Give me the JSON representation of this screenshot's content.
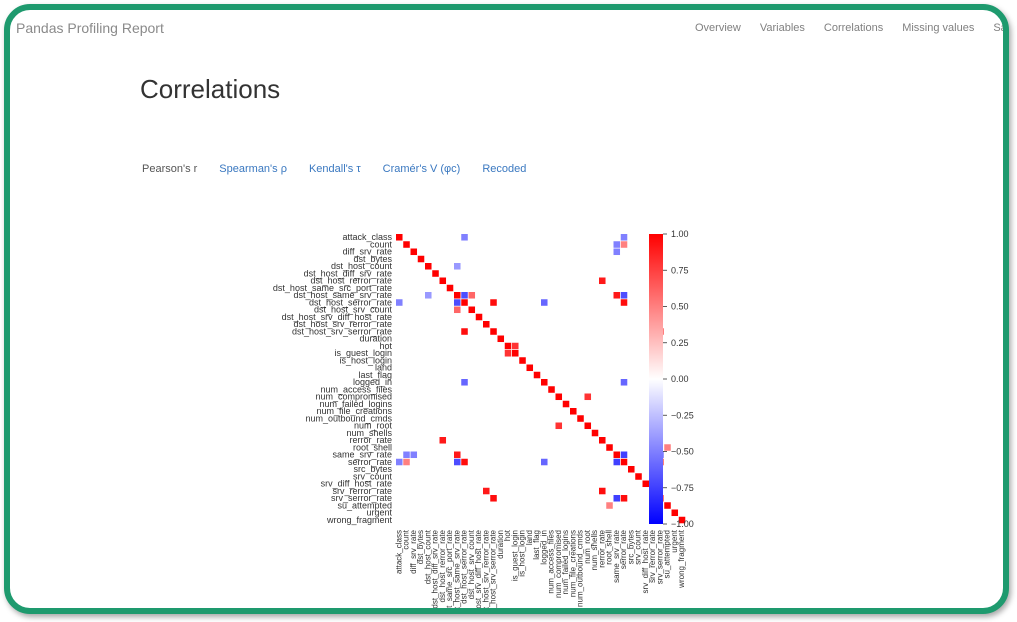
{
  "navbar": {
    "brand": "Pandas Profiling Report",
    "links": [
      "Overview",
      "Variables",
      "Correlations",
      "Missing values",
      "Sample"
    ]
  },
  "page": {
    "title": "Correlations"
  },
  "tabs": [
    "Pearson's r",
    "Spearman's ρ",
    "Kendall's τ",
    "Cramér's V (φc)",
    "Recoded"
  ],
  "active_tab": "Pearson's r",
  "chart_data": {
    "type": "heatmap",
    "variables": [
      "attack_class",
      "count",
      "diff_srv_rate",
      "dst_bytes",
      "dst_host_count",
      "dst_host_diff_srv_rate",
      "dst_host_rerror_rate",
      "dst_host_same_src_port_rate",
      "dst_host_same_srv_rate",
      "dst_host_serror_rate",
      "dst_host_srv_count",
      "dst_host_srv_diff_host_rate",
      "dst_host_srv_rerror_rate",
      "dst_host_srv_serror_rate",
      "duration",
      "hot",
      "is_guest_login",
      "is_host_login",
      "land",
      "last_flag",
      "logged_in",
      "num_access_files",
      "num_compromised",
      "num_failed_logins",
      "num_file_creations",
      "num_outbound_cmds",
      "num_root",
      "num_shells",
      "rerror_rate",
      "root_shell",
      "same_srv_rate",
      "serror_rate",
      "src_bytes",
      "srv_count",
      "srv_diff_host_rate",
      "srv_rerror_rate",
      "srv_serror_rate",
      "su_attempted",
      "urgent",
      "wrong_fragment"
    ],
    "colorbar": {
      "ticks": [
        "1.00",
        "0.75",
        "0.50",
        "0.25",
        "0.00",
        "−0.25",
        "−0.50",
        "−0.75",
        "−1.00"
      ],
      "min": -1,
      "max": 1,
      "low_color": "#0000ff",
      "mid_color": "#ffffff",
      "high_color": "#ff0000"
    },
    "strong_pairs": [
      {
        "a": "dst_host_same_srv_rate",
        "b": "same_srv_rate",
        "r": 0.9
      },
      {
        "a": "dst_host_serror_rate",
        "b": "serror_rate",
        "r": 0.95
      },
      {
        "a": "dst_host_srv_serror_rate",
        "b": "srv_serror_rate",
        "r": 0.95
      },
      {
        "a": "dst_host_serror_rate",
        "b": "dst_host_srv_serror_rate",
        "r": 0.95
      },
      {
        "a": "serror_rate",
        "b": "srv_serror_rate",
        "r": 0.95
      },
      {
        "a": "dst_host_rerror_rate",
        "b": "rerror_rate",
        "r": 0.9
      },
      {
        "a": "dst_host_srv_rerror_rate",
        "b": "srv_rerror_rate",
        "r": 0.9
      },
      {
        "a": "rerror_rate",
        "b": "srv_rerror_rate",
        "r": 0.95
      },
      {
        "a": "same_srv_rate",
        "b": "serror_rate",
        "r": -0.75
      },
      {
        "a": "same_srv_rate",
        "b": "srv_serror_rate",
        "r": -0.75
      },
      {
        "a": "dst_host_same_srv_rate",
        "b": "dst_host_serror_rate",
        "r": -0.7
      },
      {
        "a": "dst_host_same_srv_rate",
        "b": "serror_rate",
        "r": -0.7
      },
      {
        "a": "logged_in",
        "b": "serror_rate",
        "r": -0.6
      },
      {
        "a": "logged_in",
        "b": "dst_host_serror_rate",
        "r": -0.6
      },
      {
        "a": "attack_class",
        "b": "dst_host_serror_rate",
        "r": -0.5
      },
      {
        "a": "attack_class",
        "b": "serror_rate",
        "r": -0.5
      },
      {
        "a": "count",
        "b": "serror_rate",
        "r": 0.5
      },
      {
        "a": "count",
        "b": "same_srv_rate",
        "r": -0.5
      },
      {
        "a": "dst_host_count",
        "b": "dst_host_same_srv_rate",
        "r": -0.4
      },
      {
        "a": "hot",
        "b": "is_guest_login",
        "r": 0.8
      },
      {
        "a": "is_guest_login",
        "b": "hot",
        "r": 0.8
      },
      {
        "a": "num_compromised",
        "b": "num_root",
        "r": 0.8
      },
      {
        "a": "root_shell",
        "b": "su_attempted",
        "r": 0.5
      },
      {
        "a": "dst_host_srv_count",
        "b": "dst_host_same_srv_rate",
        "r": 0.6
      },
      {
        "a": "diff_srv_rate",
        "b": "same_srv_rate",
        "r": -0.5
      }
    ]
  }
}
